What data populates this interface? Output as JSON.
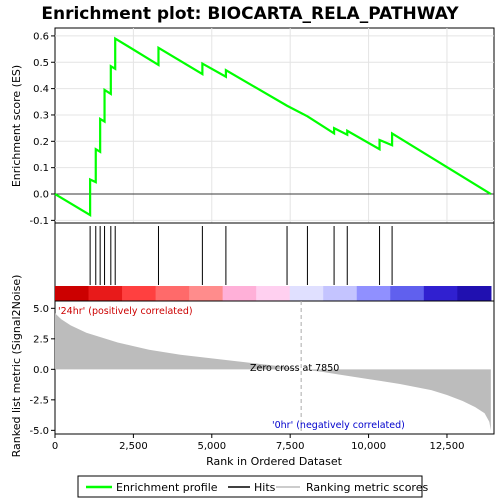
{
  "chart_data": [
    {
      "type": "line",
      "panel": "enrichment",
      "title": "Enrichment plot: BIOCARTA_RELA_PATHWAY",
      "ylabel": "Enrichment score (ES)",
      "xlim": [
        0,
        14000
      ],
      "ylim": [
        -0.11,
        0.63
      ],
      "yticks": [
        -0.1,
        0.0,
        0.1,
        0.2,
        0.3,
        0.4,
        0.5,
        0.6
      ],
      "ytick_labels": [
        "-0.1",
        "0.0",
        "0.1",
        "0.2",
        "0.3",
        "0.4",
        "0.5",
        "0.6"
      ],
      "series": [
        {
          "name": "Enrichment profile",
          "color": "#00ff00",
          "x": [
            0,
            1120,
            1120,
            1300,
            1300,
            1440,
            1440,
            1580,
            1580,
            1780,
            1780,
            1920,
            1920,
            3300,
            3300,
            4700,
            4700,
            5450,
            5450,
            7400,
            7400,
            8050,
            8900,
            8900,
            9320,
            9320,
            10350,
            10350,
            10750,
            10750,
            13900
          ],
          "y": [
            0.0,
            -0.08,
            0.055,
            0.045,
            0.17,
            0.16,
            0.285,
            0.275,
            0.395,
            0.38,
            0.485,
            0.475,
            0.59,
            0.49,
            0.555,
            0.455,
            0.495,
            0.445,
            0.47,
            0.335,
            0.335,
            0.295,
            0.23,
            0.25,
            0.225,
            0.24,
            0.17,
            0.205,
            0.185,
            0.23,
            0.0
          ]
        }
      ]
    },
    {
      "type": "hits",
      "panel": "hits",
      "name": "Hits",
      "color": "#000000",
      "positions": [
        1120,
        1300,
        1440,
        1580,
        1780,
        1920,
        3300,
        4700,
        5450,
        7400,
        8050,
        8900,
        9320,
        10350,
        10750
      ],
      "heatmap_gradient": [
        "#cc0000",
        "#e81a1a",
        "#ff4040",
        "#ff6a6a",
        "#ff8c8c",
        "#ffb0d8",
        "#ffd0f0",
        "#e0e0ff",
        "#c4c4ff",
        "#9090ff",
        "#6060ee",
        "#3020d0",
        "#2010b0"
      ]
    },
    {
      "type": "area",
      "panel": "ranked-metric",
      "ylabel": "Ranked list metric (Signal2Noise)",
      "xlabel": "Rank in Ordered Dataset",
      "xlim": [
        0,
        14000
      ],
      "ylim": [
        -5.3,
        5.6
      ],
      "xticks": [
        0,
        2500,
        5000,
        7500,
        10000,
        12500
      ],
      "xtick_labels": [
        "0",
        "2,500",
        "5,000",
        "7,500",
        "10,000",
        "12,500"
      ],
      "yticks": [
        -5.0,
        -2.5,
        0.0,
        2.5,
        5.0
      ],
      "ytick_labels": [
        "-5.0",
        "-2.5",
        "0.0",
        "2.5",
        "5.0"
      ],
      "x": [
        0,
        200,
        500,
        1000,
        1500,
        2000,
        2500,
        3000,
        4000,
        5000,
        6000,
        7000,
        7850,
        8500,
        9000,
        10000,
        11000,
        12000,
        12500,
        13000,
        13400,
        13700,
        13850,
        13900
      ],
      "y": [
        4.6,
        4.1,
        3.6,
        3.0,
        2.6,
        2.2,
        1.9,
        1.6,
        1.2,
        0.9,
        0.6,
        0.3,
        0.0,
        -0.2,
        -0.4,
        -0.8,
        -1.2,
        -1.7,
        -2.1,
        -2.6,
        -3.1,
        -3.6,
        -4.3,
        -5.0
      ],
      "fill": "#bcbcbc",
      "zero_cross_value": 7850,
      "annotations": {
        "zero_cross": "Zero cross at 7850",
        "positive": "'24hr' (positively correlated)",
        "negative": "'0hr' (negatively correlated)"
      }
    }
  ],
  "legend": {
    "placement": "bottom",
    "items": [
      {
        "label": "Enrichment profile",
        "color": "#00ff00"
      },
      {
        "label": "Hits",
        "color": "#000000"
      },
      {
        "label": "Ranking metric scores",
        "color": "#bcbcbc"
      }
    ]
  }
}
